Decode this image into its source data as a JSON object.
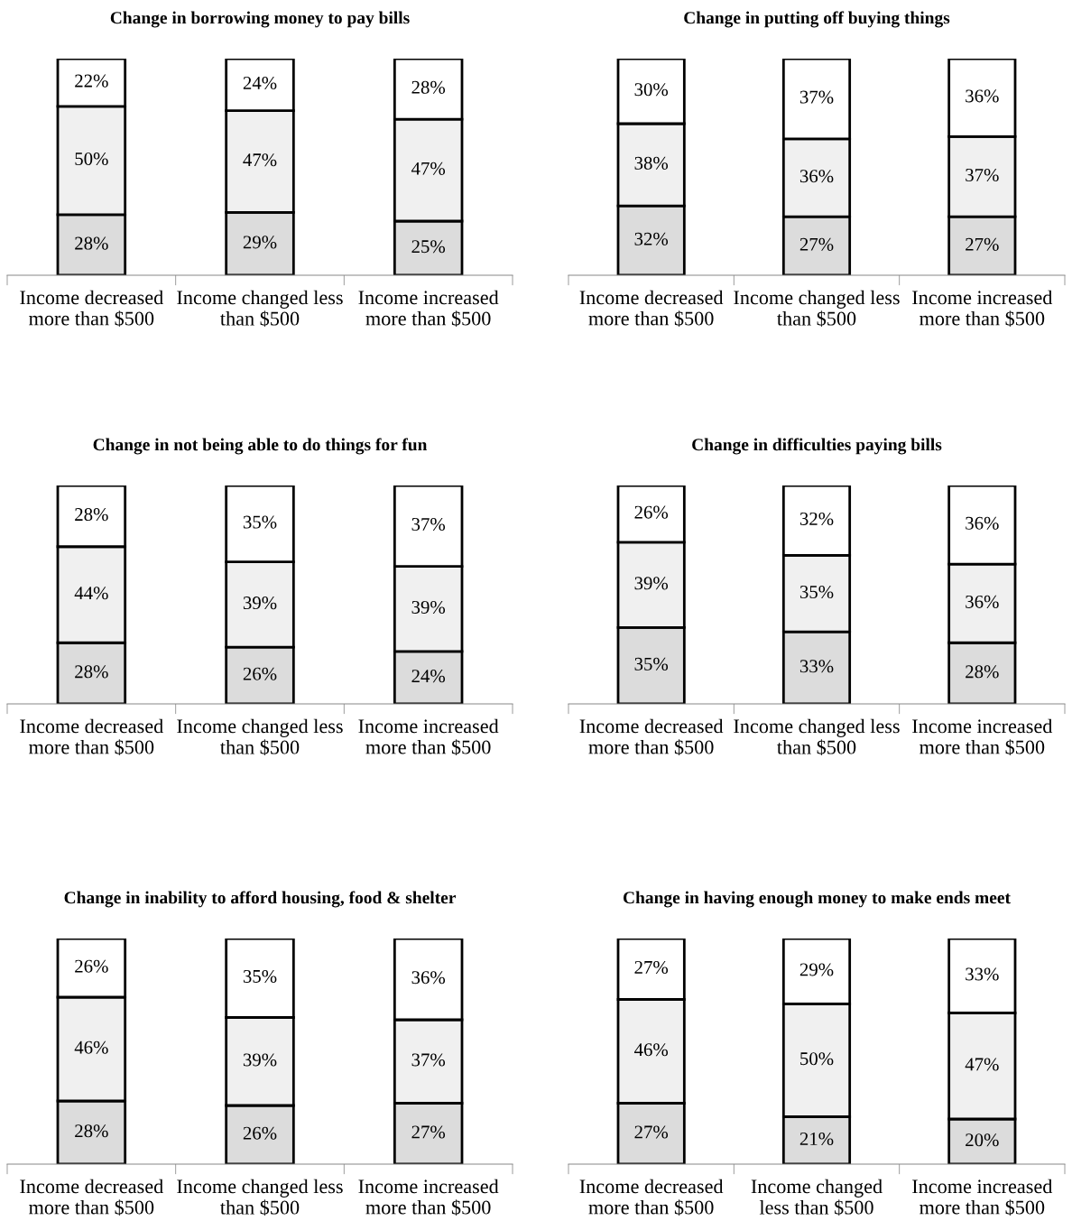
{
  "chart_data": [
    {
      "type": "bar",
      "stacked": true,
      "title": "Change in borrowing money to pay bills",
      "categories": [
        "Income decreased\nmore than $500",
        "Income changed less\nthan $500",
        "Income increased\nmore than $500"
      ],
      "tick_labels": "x",
      "series": [
        {
          "color": "#dcdcdc",
          "values": [
            28,
            29,
            25
          ],
          "value_labels": [
            "28%",
            "29%",
            "25%"
          ]
        },
        {
          "color": "#f0f0f0",
          "values": [
            50,
            47,
            47
          ],
          "value_labels": [
            "50%",
            "47%",
            "47%"
          ]
        },
        {
          "color": "#ffffff",
          "values": [
            22,
            24,
            28
          ],
          "value_labels": [
            "22%",
            "24%",
            "28%"
          ]
        }
      ]
    },
    {
      "type": "bar",
      "stacked": true,
      "title": "Change in putting off buying things",
      "categories": [
        "Income decreased\nmore than $500",
        "Income changed less\nthan $500",
        "Income increased\nmore than $500"
      ],
      "tick_labels": "x",
      "series": [
        {
          "color": "#dcdcdc",
          "values": [
            32,
            27,
            27
          ],
          "value_labels": [
            "32%",
            "27%",
            "27%"
          ]
        },
        {
          "color": "#f0f0f0",
          "values": [
            38,
            36,
            37
          ],
          "value_labels": [
            "38%",
            "36%",
            "37%"
          ]
        },
        {
          "color": "#ffffff",
          "values": [
            30,
            37,
            36
          ],
          "value_labels": [
            "30%",
            "37%",
            "36%"
          ]
        }
      ]
    },
    {
      "type": "bar",
      "stacked": true,
      "title": "Change in not being able to do things for fun",
      "categories": [
        "Income decreased\nmore than $500",
        "Income changed less\nthan $500",
        "Income increased\nmore than $500"
      ],
      "tick_labels": "x",
      "series": [
        {
          "color": "#dcdcdc",
          "values": [
            28,
            26,
            24
          ],
          "value_labels": [
            "28%",
            "26%",
            "24%"
          ]
        },
        {
          "color": "#f0f0f0",
          "values": [
            44,
            39,
            39
          ],
          "value_labels": [
            "44%",
            "39%",
            "39%"
          ]
        },
        {
          "color": "#ffffff",
          "values": [
            28,
            35,
            37
          ],
          "value_labels": [
            "28%",
            "35%",
            "37%"
          ]
        }
      ]
    },
    {
      "type": "bar",
      "stacked": true,
      "title": "Change in difficulties paying bills",
      "categories": [
        "Income decreased\nmore than $500",
        "Income changed less\nthan $500",
        "Income increased\nmore than $500"
      ],
      "tick_labels": "x",
      "series": [
        {
          "color": "#dcdcdc",
          "values": [
            35,
            33,
            28
          ],
          "value_labels": [
            "35%",
            "33%",
            "28%"
          ]
        },
        {
          "color": "#f0f0f0",
          "values": [
            39,
            35,
            36
          ],
          "value_labels": [
            "39%",
            "35%",
            "36%"
          ]
        },
        {
          "color": "#ffffff",
          "values": [
            26,
            32,
            36
          ],
          "value_labels": [
            "26%",
            "32%",
            "36%"
          ]
        }
      ]
    },
    {
      "type": "bar",
      "stacked": true,
      "title": "Change in inability to afford housing, food & shelter",
      "categories": [
        "Income decreased\nmore than $500",
        "Income changed less\nthan $500",
        "Income increased\nmore than $500"
      ],
      "tick_labels": "x",
      "series": [
        {
          "color": "#dcdcdc",
          "values": [
            28,
            26,
            27
          ],
          "value_labels": [
            "28%",
            "26%",
            "27%"
          ]
        },
        {
          "color": "#f0f0f0",
          "values": [
            46,
            39,
            37
          ],
          "value_labels": [
            "46%",
            "39%",
            "37%"
          ]
        },
        {
          "color": "#ffffff",
          "values": [
            26,
            35,
            36
          ],
          "value_labels": [
            "26%",
            "35%",
            "36%"
          ]
        }
      ]
    },
    {
      "type": "bar",
      "stacked": true,
      "title": "Change in having enough money to make ends meet",
      "categories": [
        "Income decreased\nmore than $500",
        "Income changed\nless than $500",
        "Income increased\nmore than $500"
      ],
      "tick_labels": "x",
      "series": [
        {
          "color": "#dcdcdc",
          "values": [
            27,
            21,
            20
          ],
          "value_labels": [
            "27%",
            "21%",
            "20%"
          ]
        },
        {
          "color": "#f0f0f0",
          "values": [
            46,
            50,
            47
          ],
          "value_labels": [
            "46%",
            "50%",
            "47%"
          ]
        },
        {
          "color": "#ffffff",
          "values": [
            27,
            29,
            33
          ],
          "value_labels": [
            "27%",
            "29%",
            "33%"
          ]
        }
      ]
    }
  ]
}
